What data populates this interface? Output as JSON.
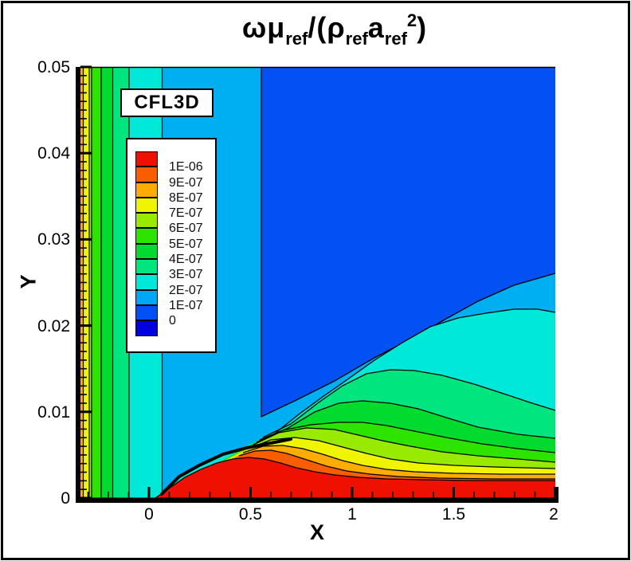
{
  "title": {
    "p1": "ωμ",
    "s1": "ref",
    "p2": "/(ρ",
    "s2": "ref",
    "p3": "a",
    "s3": "ref",
    "sup": "2",
    "p4": ")"
  },
  "badge": {
    "label": "CFL3D"
  },
  "axes": {
    "x": {
      "label": "X",
      "ticks": [
        "0",
        "0.5",
        "1",
        "1.5",
        "2"
      ]
    },
    "y": {
      "label": "Y",
      "ticks": [
        "0.05",
        "0.04",
        "0.03",
        "0.02",
        "0.01",
        "0"
      ]
    }
  },
  "legend": {
    "entries": [
      {
        "color": "#EE1000",
        "label": "1E-06"
      },
      {
        "color": "#F85E00",
        "label": "9E-07"
      },
      {
        "color": "#FFAC00",
        "label": "8E-07"
      },
      {
        "color": "#EFF400",
        "label": "7E-07"
      },
      {
        "color": "#97EA00",
        "label": "6E-07"
      },
      {
        "color": "#2DE300",
        "label": "5E-07"
      },
      {
        "color": "#00DB2D",
        "label": "4E-07"
      },
      {
        "color": "#00E57E",
        "label": "3E-07"
      },
      {
        "color": "#00E8D8",
        "label": "2E-07"
      },
      {
        "color": "#00A7F5",
        "label": "1E-07"
      },
      {
        "color": "#0351F2",
        "label": "0"
      },
      {
        "color": "#0202DD",
        "label": ""
      }
    ]
  },
  "chart_data": {
    "type": "heatmap",
    "subtype": "filled-contour",
    "title": "omega*mu_ref/(rho_ref*a_ref^2)",
    "source_label": "CFL3D",
    "xlabel": "X",
    "ylabel": "Y",
    "xlim": [
      -0.34,
      2
    ],
    "ylim": [
      0,
      0.05
    ],
    "x_ticks": [
      0,
      0.5,
      1,
      1.5,
      2
    ],
    "x_minor_step": 0.1,
    "y_ticks": [
      0,
      0.01,
      0.02,
      0.03,
      0.04,
      0.05
    ],
    "y_minor_step": 0.001,
    "contour_levels": [
      0,
      1e-07,
      2e-07,
      3e-07,
      4e-07,
      5e-07,
      6e-07,
      7e-07,
      8e-07,
      9e-07,
      1e-06
    ],
    "colors": {
      "red": "#EE1000",
      "orangered": "#F85E00",
      "orange": "#FFAC00",
      "yellow": "#EFF400",
      "chartreuse": "#97EA00",
      "bgreen": "#2DE300",
      "green": "#00DB2D",
      "spring": "#00E57E",
      "cyan": "#00E8D8",
      "sky": "#00AEF2",
      "blue": "#0351F2",
      "darkblue": "#0202DD"
    },
    "features": {
      "upstream_vertical_band_boundaries_x": [
        -0.34,
        -0.33,
        -0.3,
        -0.29,
        -0.24,
        -0.18,
        -0.1,
        0.06,
        0.55
      ],
      "freestream_blue_region": "x>0.55 above boundary-layer edge, level 0 to 1E-07",
      "blue_lower_boundary_xy": [
        [
          0.55,
          0.0094
        ],
        [
          1.0,
          0.0145
        ],
        [
          1.5,
          0.02
        ],
        [
          2.0,
          0.026
        ]
      ],
      "sky_cyan_boundary_xy": [
        [
          0.6,
          0.009
        ],
        [
          1.0,
          0.0125
        ],
        [
          1.4,
          0.02
        ],
        [
          2.0,
          0.0215
        ]
      ],
      "spring_green_hump_peak_xy": [
        1.2,
        0.0148
      ],
      "red_region_top_xy": [
        [
          0.02,
          0
        ],
        [
          0.4,
          0.0047
        ],
        [
          0.8,
          0.0029
        ],
        [
          2.0,
          0.002
        ]
      ],
      "boundary_layer_edge_origin_xy": [
        0.05,
        0.0005
      ]
    }
  }
}
